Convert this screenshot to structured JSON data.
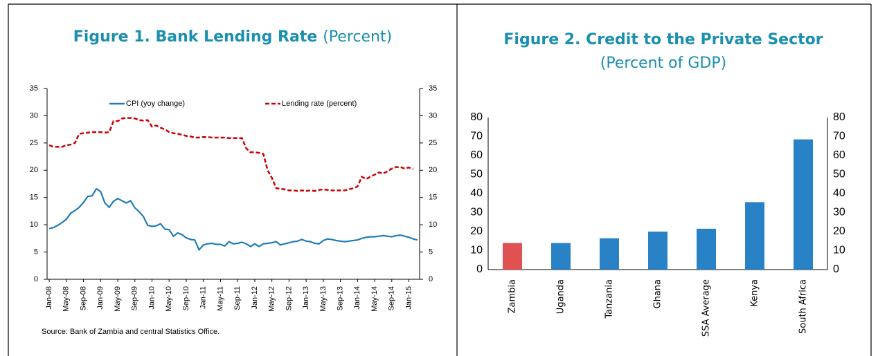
{
  "chart_data": [
    {
      "type": "line",
      "title": "Figure 1.  Bank Lending Rate",
      "subtitle": "(Percent)",
      "categories": [
        "Jan-08",
        null,
        null,
        null,
        "May-08",
        null,
        null,
        null,
        "Sep-08",
        null,
        null,
        null,
        "Jan-09",
        null,
        null,
        null,
        "May-09",
        null,
        null,
        null,
        "Sep-09",
        null,
        null,
        null,
        "Jan-10",
        null,
        null,
        null,
        "May-10",
        null,
        null,
        null,
        "Sep-10",
        null,
        null,
        null,
        "Jan-11",
        null,
        null,
        null,
        "May-11",
        null,
        null,
        null,
        "Sep-11",
        null,
        null,
        null,
        "Jan-12",
        null,
        null,
        null,
        "May-12",
        null,
        null,
        null,
        "Sep-12",
        null,
        null,
        null,
        "Jan-13",
        null,
        null,
        null,
        "May-13",
        null,
        null,
        null,
        "Sep-13",
        null,
        null,
        null,
        "Jan-14",
        null,
        null,
        null,
        "May-14",
        null,
        null,
        null,
        "Sep-14",
        null,
        null,
        null,
        "Jan-15",
        null,
        null
      ],
      "series": [
        {
          "name": "CPI (yoy change)",
          "color": "#1f7bb5",
          "dashed": false,
          "values": [
            9.3,
            9.5,
            9.9,
            10.4,
            11.0,
            12.1,
            12.6,
            13.2,
            14.1,
            15.2,
            15.3,
            16.6,
            16.1,
            14.0,
            13.2,
            14.3,
            14.8,
            14.4,
            14.0,
            14.4,
            13.1,
            12.4,
            11.5,
            9.9,
            9.7,
            9.8,
            10.2,
            9.2,
            9.1,
            7.9,
            8.5,
            8.2,
            7.6,
            7.3,
            7.2,
            5.4,
            6.3,
            6.5,
            6.6,
            6.4,
            6.4,
            6.1,
            6.9,
            6.5,
            6.6,
            6.8,
            6.5,
            6.0,
            6.5,
            6.0,
            6.5,
            6.6,
            6.7,
            6.9,
            6.3,
            6.5,
            6.7,
            6.9,
            7.0,
            7.3,
            7.0,
            6.9,
            6.6,
            6.5,
            7.1,
            7.4,
            7.3,
            7.1,
            7.0,
            6.9,
            7.0,
            7.1,
            7.2,
            7.5,
            7.7,
            7.8,
            7.8,
            7.9,
            8.0,
            7.9,
            7.8,
            8.0,
            8.1,
            7.9,
            7.7,
            7.4,
            7.2
          ]
        },
        {
          "name": "Lending rate (percent)",
          "color": "#cc0000",
          "dashed": true,
          "values": [
            24.6,
            24.3,
            24.3,
            24.3,
            24.6,
            24.7,
            25.0,
            26.7,
            26.8,
            26.9,
            27.0,
            27.0,
            27.0,
            26.9,
            27.0,
            29.0,
            29.0,
            29.5,
            29.6,
            29.6,
            29.5,
            29.2,
            29.1,
            29.2,
            28.0,
            28.2,
            27.8,
            27.5,
            27.0,
            26.8,
            26.7,
            26.5,
            26.3,
            26.2,
            26.0,
            26.0,
            26.1,
            26.1,
            26.0,
            26.0,
            26.0,
            26.0,
            25.9,
            25.9,
            25.9,
            25.9,
            24.0,
            23.3,
            23.3,
            23.2,
            23.0,
            20.0,
            18.6,
            16.7,
            16.6,
            16.5,
            16.3,
            16.3,
            16.2,
            16.3,
            16.2,
            16.3,
            16.2,
            16.4,
            16.5,
            16.4,
            16.3,
            16.3,
            16.3,
            16.3,
            16.5,
            16.7,
            17.0,
            18.8,
            18.4,
            18.8,
            19.2,
            19.6,
            19.4,
            19.8,
            20.3,
            20.6,
            20.6,
            20.3,
            20.5,
            20.2,
            null
          ]
        }
      ],
      "ylim": [
        0,
        35
      ],
      "yticks": [
        0,
        5,
        10,
        15,
        20,
        25,
        30,
        35
      ],
      "y2lim": [
        0,
        35
      ],
      "y2ticks": [
        0,
        5,
        10,
        15,
        20,
        25,
        30,
        35
      ],
      "grid": false,
      "legend": "top",
      "source": "Source: Bank of Zambia and central Statistics Office."
    },
    {
      "type": "bar",
      "title": "Figure 2.  Credit to the Private Sector",
      "subtitle": "(Percent of GDP)",
      "categories": [
        "Zambia",
        "Uganda",
        "Tanzania",
        "Ghana",
        "SSA Average",
        "Kenya",
        "South Africa"
      ],
      "values": [
        14,
        14,
        16.5,
        20,
        21.5,
        35.5,
        68.5
      ],
      "colors": [
        "#e05252",
        "#2a82c6",
        "#2a82c6",
        "#2a82c6",
        "#2a82c6",
        "#2a82c6",
        "#2a82c6"
      ],
      "ylim": [
        0,
        80
      ],
      "yticks": [
        0,
        10,
        20,
        30,
        40,
        50,
        60,
        70,
        80
      ],
      "y2lim": [
        0,
        80
      ],
      "y2ticks": [
        0,
        10,
        20,
        30,
        40,
        50,
        60,
        70,
        80
      ],
      "grid": false
    }
  ]
}
